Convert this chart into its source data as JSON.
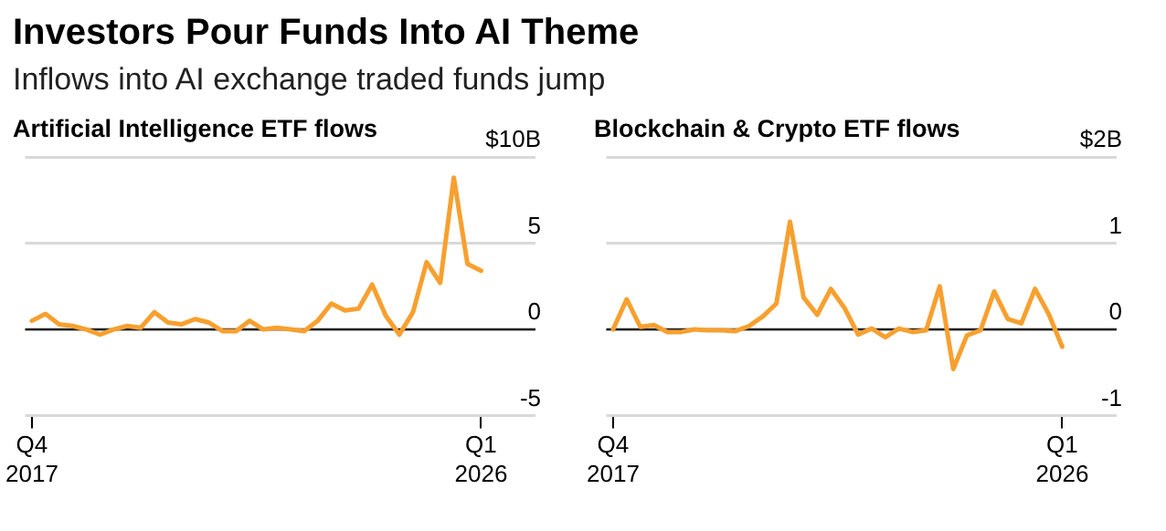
{
  "chart_data": [
    {
      "type": "other",
      "title": "Investors Pour Funds Into AI Theme",
      "subtitle": "Inflows into AI exchange traded funds jump"
    },
    {
      "type": "line",
      "title": "Artificial Intelligence ETF flows",
      "categories": [
        "Q4 2017",
        null,
        null,
        null,
        null,
        null,
        null,
        null,
        null,
        null,
        null,
        null,
        null,
        null,
        null,
        null,
        null,
        null,
        null,
        null,
        null,
        null,
        null,
        null,
        null,
        null,
        null,
        null,
        null,
        null,
        null,
        null,
        null,
        "Q1 2026"
      ],
      "values": [
        0.5,
        0.9,
        0.3,
        0.2,
        0,
        -0.3,
        0,
        0.2,
        0.1,
        1.0,
        0.4,
        0.3,
        0.6,
        0.4,
        -0.1,
        -0.1,
        0.5,
        0,
        0.1,
        0,
        -0.1,
        0.5,
        1.5,
        1.1,
        1.2,
        2.6,
        0.8,
        -0.3,
        1.0,
        3.9,
        2.7,
        8.8,
        3.8,
        3.4
      ],
      "color": "#f7a02f",
      "ylim": [
        -5,
        10
      ],
      "yticks": [
        -5,
        0,
        5,
        {
          "value": 10,
          "label": "$10B"
        }
      ],
      "grid": "y",
      "marker": "none",
      "line_style": "solid",
      "ref_lines": [
        {
          "axis": "y",
          "value": 0,
          "color": "#222222"
        }
      ]
    },
    {
      "type": "line",
      "title": "Blockchain & Crypto ETF flows",
      "categories": [
        "Q4 2017",
        null,
        null,
        null,
        null,
        null,
        null,
        null,
        null,
        null,
        null,
        null,
        null,
        null,
        null,
        null,
        null,
        null,
        null,
        null,
        null,
        null,
        null,
        null,
        null,
        null,
        null,
        null,
        null,
        null,
        null,
        null,
        null,
        "Q1 2026"
      ],
      "values": [
        0,
        0.35,
        0.03,
        0.05,
        -0.03,
        -0.03,
        0,
        -0.01,
        -0.01,
        -0.02,
        0.04,
        0.15,
        0.3,
        1.25,
        0.37,
        0.17,
        0.47,
        0.25,
        -0.06,
        0.01,
        -0.09,
        0.01,
        -0.03,
        -0.01,
        0.5,
        -0.46,
        -0.07,
        -0.01,
        0.44,
        0.12,
        0.07,
        0.47,
        0.18,
        -0.2
      ],
      "color": "#f7a02f",
      "ylim": [
        -1,
        2
      ],
      "yticks": [
        -1,
        0,
        1,
        {
          "value": 2,
          "label": "$2B"
        }
      ],
      "grid": "y",
      "marker": "none",
      "line_style": "solid",
      "ref_lines": [
        {
          "axis": "y",
          "value": 0,
          "color": "#222222"
        }
      ]
    }
  ]
}
